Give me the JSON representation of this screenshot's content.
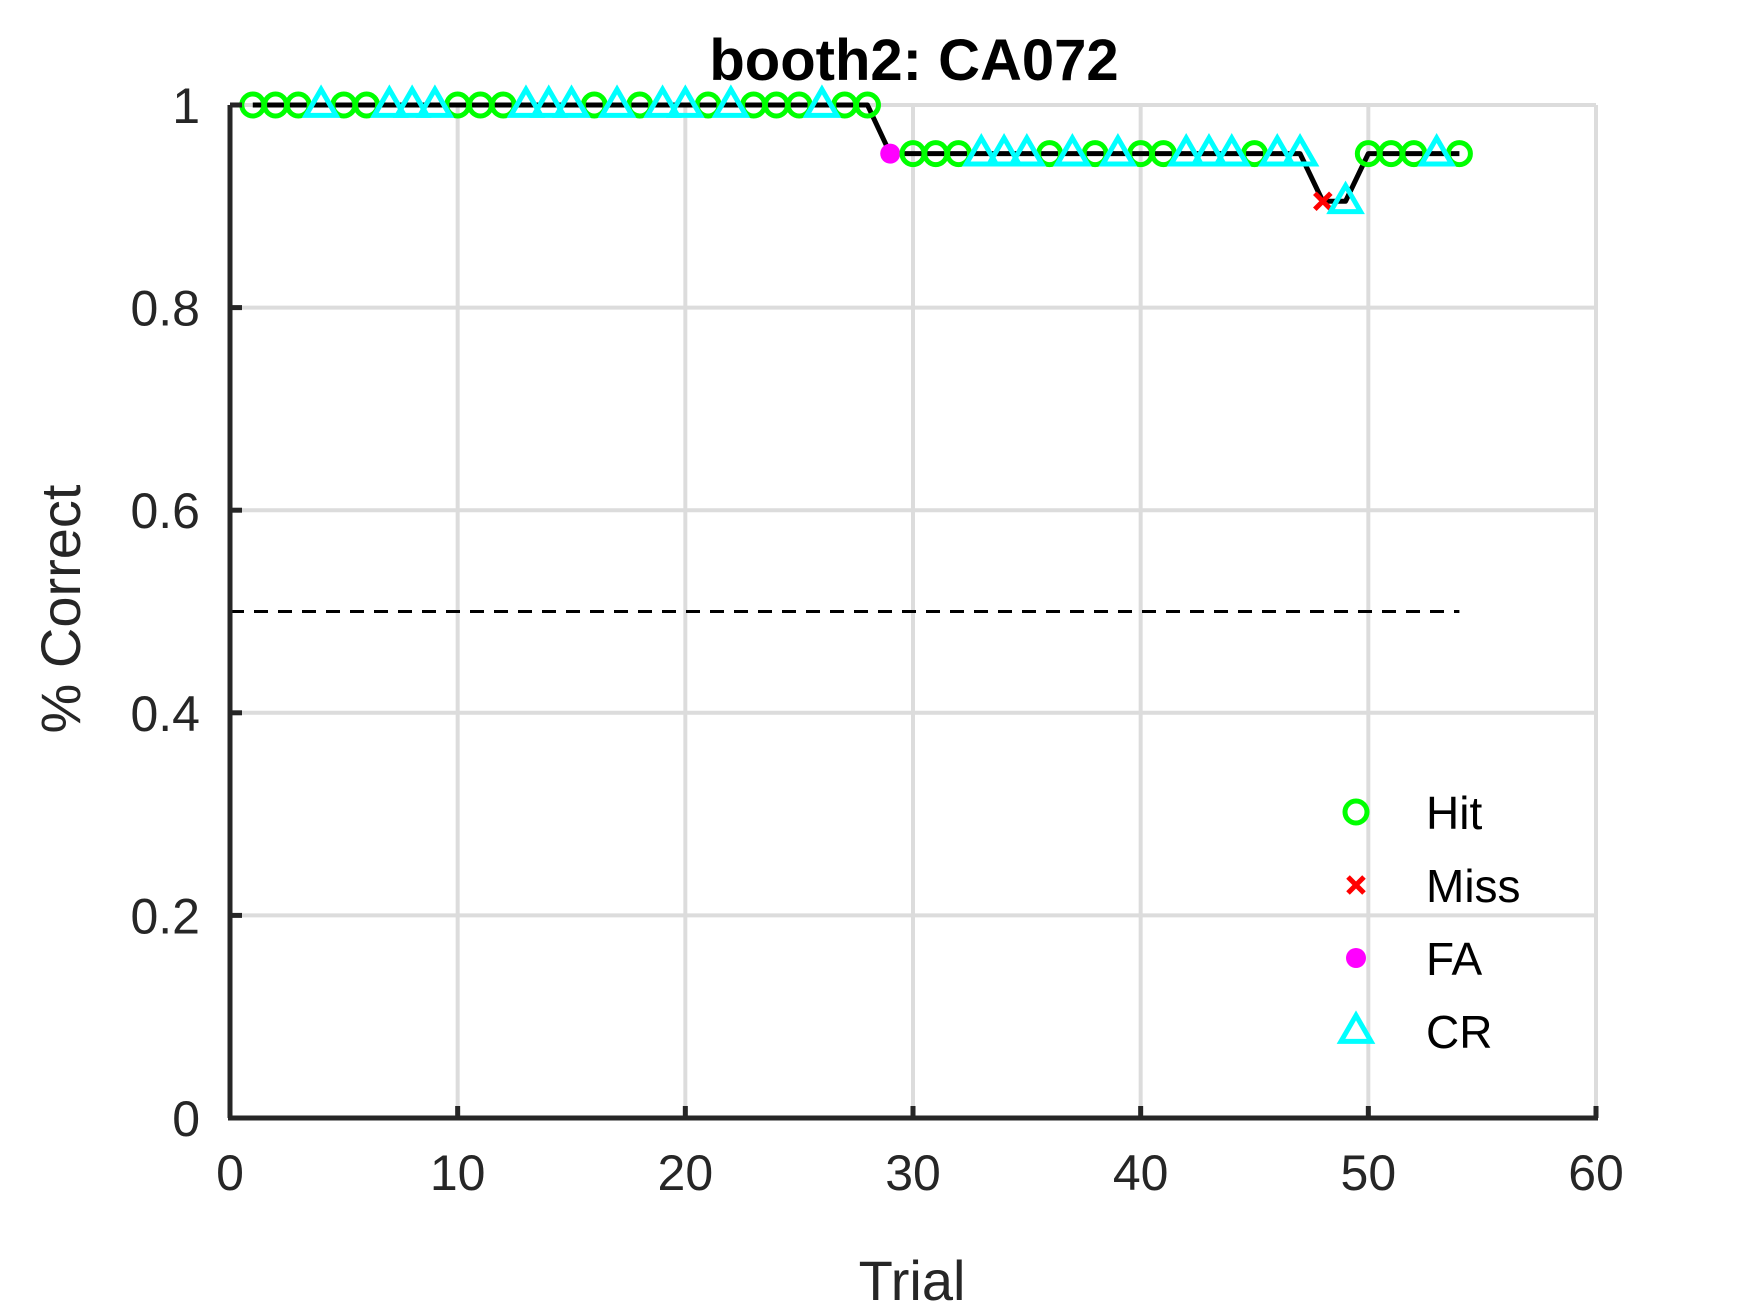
{
  "chart_data": {
    "type": "line",
    "title": "booth2: CA072",
    "xlabel": "Trial",
    "ylabel": "% Correct",
    "xlim": [
      0,
      60
    ],
    "ylim": [
      0,
      1
    ],
    "xticks": [
      0,
      10,
      20,
      30,
      40,
      50,
      60
    ],
    "yticks": [
      0,
      0.2,
      0.4,
      0.6,
      0.8,
      1
    ],
    "xtick_labels": [
      "0",
      "10",
      "20",
      "30",
      "40",
      "50",
      "60"
    ],
    "ytick_labels": [
      "0",
      "0.2",
      "0.4",
      "0.6",
      "0.8",
      "1"
    ],
    "grid": true,
    "legend_position": "bottom-right",
    "reference_line": {
      "y": 0.5,
      "x_range": [
        0,
        54
      ],
      "style": "dashed",
      "color": "#000000"
    },
    "performance": {
      "x": [
        1,
        2,
        3,
        4,
        5,
        6,
        7,
        8,
        9,
        10,
        11,
        12,
        13,
        14,
        15,
        16,
        17,
        18,
        19,
        20,
        21,
        22,
        23,
        24,
        25,
        26,
        27,
        28,
        29,
        30,
        31,
        32,
        33,
        34,
        35,
        36,
        37,
        38,
        39,
        40,
        41,
        42,
        43,
        44,
        45,
        46,
        47,
        48,
        49,
        50,
        51,
        52,
        53,
        54
      ],
      "y": [
        1,
        1,
        1,
        1,
        1,
        1,
        1,
        1,
        1,
        1,
        1,
        1,
        1,
        1,
        1,
        1,
        1,
        1,
        1,
        1,
        1,
        1,
        1,
        1,
        1,
        1,
        1,
        1,
        0.952,
        0.952,
        0.952,
        0.952,
        0.952,
        0.952,
        0.952,
        0.952,
        0.952,
        0.952,
        0.952,
        0.952,
        0.952,
        0.952,
        0.952,
        0.952,
        0.952,
        0.952,
        0.952,
        0.905,
        0.905,
        0.952,
        0.952,
        0.952,
        0.952,
        0.952
      ],
      "color": "#000000"
    },
    "series": [
      {
        "name": "Hit",
        "marker": "circle-open",
        "color": "#00ff00",
        "x": [
          1,
          2,
          3,
          5,
          6,
          10,
          11,
          12,
          16,
          18,
          21,
          23,
          24,
          25,
          27,
          28,
          30,
          31,
          32,
          36,
          38,
          40,
          41,
          45,
          50,
          51,
          52,
          54
        ]
      },
      {
        "name": "Miss",
        "marker": "x",
        "color": "#ff0000",
        "x": [
          48
        ]
      },
      {
        "name": "FA",
        "marker": "dot",
        "color": "#ff00ff",
        "x": [
          29
        ]
      },
      {
        "name": "CR",
        "marker": "triangle-open",
        "color": "#00ffff",
        "x": [
          4,
          7,
          8,
          9,
          13,
          14,
          15,
          17,
          19,
          20,
          22,
          26,
          33,
          34,
          35,
          37,
          39,
          42,
          43,
          44,
          46,
          47,
          49,
          53
        ]
      }
    ]
  }
}
